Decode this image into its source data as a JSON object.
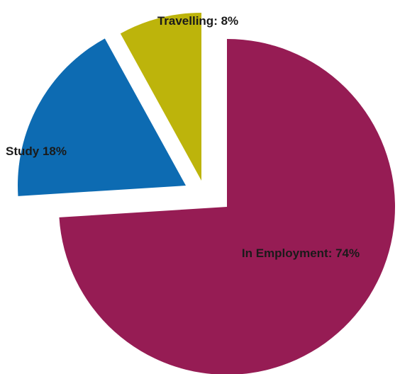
{
  "chart_data": {
    "type": "pie",
    "title": "",
    "slices": [
      {
        "category": "In Employment",
        "value": 74,
        "label": "In Employment: 74%",
        "color": "#961c54",
        "exploded": true
      },
      {
        "category": "Study",
        "value": 18,
        "label": "Study 18%",
        "color": "#0d6bb2",
        "exploded": true
      },
      {
        "category": "Travelling",
        "value": 8,
        "label": "Travelling: 8%",
        "color": "#bdb40b",
        "exploded": true
      }
    ],
    "legend": "none",
    "start": "top",
    "direction": "clockwise"
  }
}
